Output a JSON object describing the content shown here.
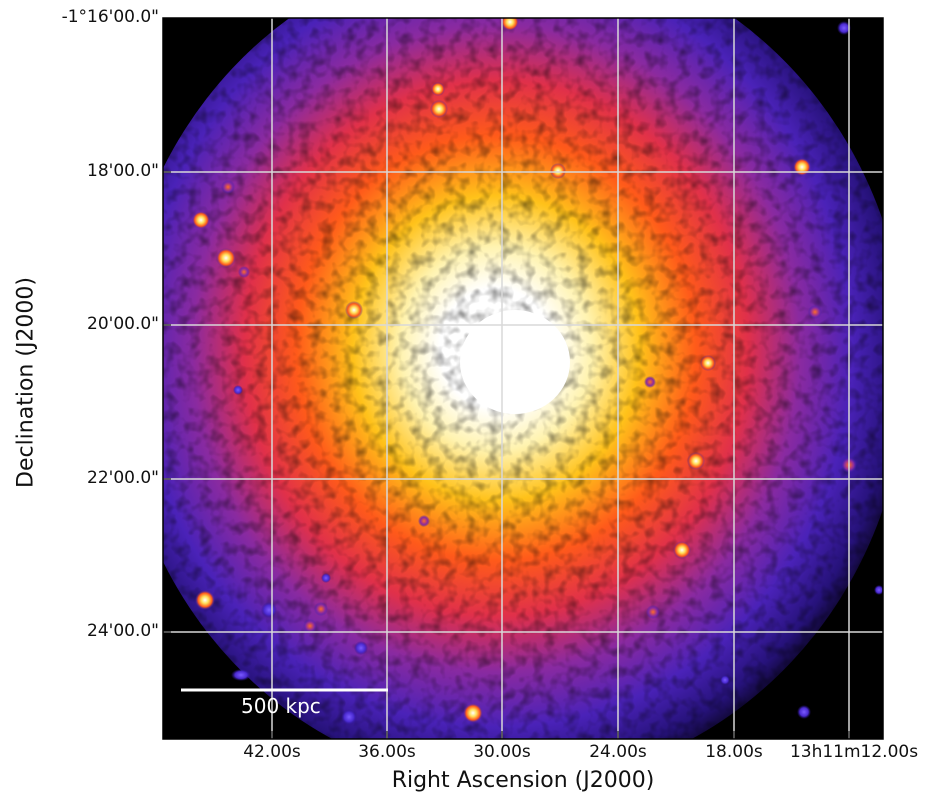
{
  "figure": {
    "x_axis_label": "Right Ascension (J2000)",
    "y_axis_label": "Declination (J2000)",
    "dec_ticks": [
      "-1°16'00.0\"",
      "18'00.0\"",
      "20'00.0\"",
      "22'00.0\"",
      "24'00.0\""
    ],
    "ra_ticks": [
      "42.00s",
      "36.00s",
      "30.00s",
      "24.00s",
      "18.00s",
      "13h11m12.00s"
    ],
    "scalebar_label": "500 kpc",
    "colors": {
      "background": "#000000",
      "low": "#3a1fb0",
      "mid": "#ff3a1a",
      "high": "#ffd21a",
      "peak": "#ffffff",
      "grid": "#d8d8d8"
    }
  }
}
